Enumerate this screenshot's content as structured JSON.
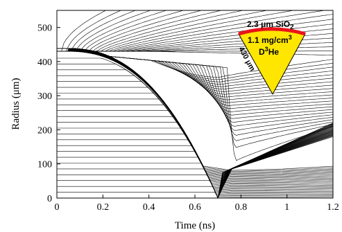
{
  "chart_data": {
    "type": "line",
    "title": "",
    "xlabel": "Time (ns)",
    "ylabel": "Radius (μm)",
    "xlim": [
      0,
      1.2
    ],
    "ylim": [
      0,
      550
    ],
    "xticks": [
      "0",
      "0.2",
      "0.4",
      "0.6",
      "0.8",
      "1",
      "1.2"
    ],
    "yticks": [
      "0",
      "100",
      "200",
      "300",
      "400",
      "500"
    ],
    "grid": false,
    "legend": "none",
    "description_of_series": "Lagrangian radius trajectories (radius vs time) of a spherical target",
    "initial_radius": 430,
    "shell_outer_trajectory": [
      {
        "x": 0.0,
        "y": 430
      },
      {
        "x": 0.1,
        "y": 428
      },
      {
        "x": 0.2,
        "y": 415
      },
      {
        "x": 0.3,
        "y": 385
      },
      {
        "x": 0.4,
        "y": 325
      },
      {
        "x": 0.5,
        "y": 240
      },
      {
        "x": 0.6,
        "y": 130
      },
      {
        "x": 0.66,
        "y": 55
      },
      {
        "x": 0.7,
        "y": 8
      }
    ],
    "stagnation": {
      "x": 0.76,
      "y": 85
    },
    "outer_ablation_lines": {
      "start_x": 0.02,
      "end_y_at_x_1.2": [
        210,
        555
      ]
    },
    "inner_fuel_lines": {
      "count": 24,
      "max_y": 410
    }
  },
  "inset": {
    "shell_label": "2.3 μm SiO",
    "shell_subscript": "2",
    "density_label": "1.1 mg/cm",
    "density_superscript": "3",
    "fuel_prefix": "D",
    "fuel_superscript": "3",
    "fuel_suffix": "He",
    "radius_label": "430 μm",
    "colors": {
      "shell": "#e8141b",
      "fuel": "#ffe600",
      "outline": "#000000"
    }
  }
}
